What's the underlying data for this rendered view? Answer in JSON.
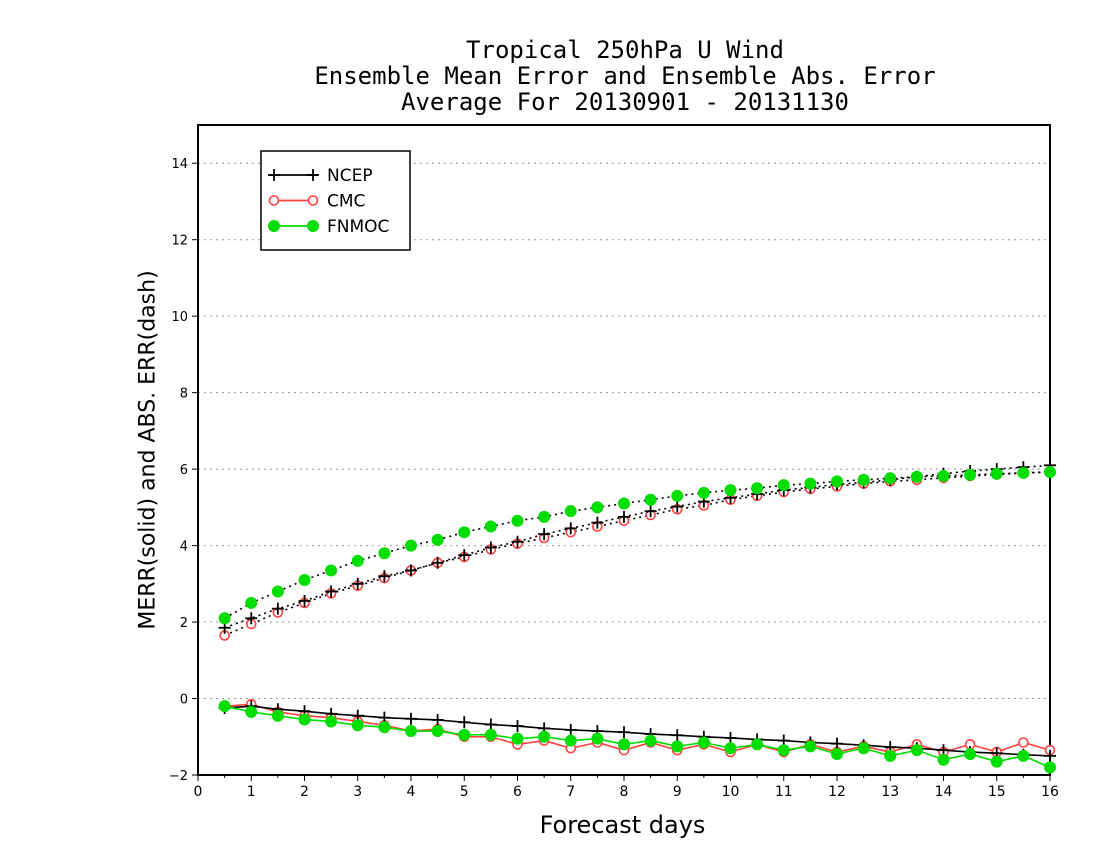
{
  "chart_data": {
    "type": "line",
    "title": [
      "Tropical 250hPa U Wind",
      "Ensemble Mean Error and Ensemble Abs. Error",
      "Average For 20130901 - 20131130"
    ],
    "xlabel": "Forecast days",
    "ylabel": "MERR(solid) and ABS. ERR(dash)",
    "xlim": [
      0,
      16
    ],
    "ylim": [
      -2,
      15
    ],
    "xticks": [
      0,
      1,
      2,
      3,
      4,
      5,
      6,
      7,
      8,
      9,
      10,
      11,
      12,
      13,
      14,
      15,
      16
    ],
    "yticks": [
      -2,
      0,
      2,
      4,
      6,
      8,
      10,
      12,
      14
    ],
    "grid": true,
    "legend_position": "top-left",
    "x": [
      0.5,
      1,
      1.5,
      2,
      2.5,
      3,
      3.5,
      4,
      4.5,
      5,
      5.5,
      6,
      6.5,
      7,
      7.5,
      8,
      8.5,
      9,
      9.5,
      10,
      10.5,
      11,
      11.5,
      12,
      12.5,
      13,
      13.5,
      14,
      14.5,
      15,
      15.5,
      16
    ],
    "series": [
      {
        "name": "NCEP",
        "marker": "plus",
        "color": "#000000",
        "kind": "mean_error",
        "values": [
          -0.25,
          -0.2,
          -0.28,
          -0.33,
          -0.4,
          -0.45,
          -0.5,
          -0.53,
          -0.56,
          -0.62,
          -0.68,
          -0.72,
          -0.78,
          -0.82,
          -0.85,
          -0.88,
          -0.93,
          -0.96,
          -1.0,
          -1.03,
          -1.07,
          -1.1,
          -1.15,
          -1.18,
          -1.22,
          -1.27,
          -1.3,
          -1.35,
          -1.4,
          -1.43,
          -1.47,
          -1.5
        ]
      },
      {
        "name": "NCEP",
        "marker": "plus",
        "color": "#000000",
        "kind": "abs_error",
        "values": [
          1.85,
          2.1,
          2.35,
          2.55,
          2.8,
          3.0,
          3.2,
          3.35,
          3.55,
          3.75,
          3.95,
          4.1,
          4.3,
          4.45,
          4.6,
          4.75,
          4.9,
          5.02,
          5.15,
          5.25,
          5.35,
          5.45,
          5.52,
          5.6,
          5.65,
          5.72,
          5.8,
          5.88,
          5.95,
          6.0,
          6.05,
          6.1
        ]
      },
      {
        "name": "CMC",
        "marker": "circle-open",
        "color": "#ff4040",
        "kind": "mean_error",
        "values": [
          -0.2,
          -0.15,
          -0.35,
          -0.45,
          -0.5,
          -0.6,
          -0.7,
          -0.85,
          -0.8,
          -1.0,
          -1.0,
          -1.2,
          -1.1,
          -1.3,
          -1.15,
          -1.35,
          -1.15,
          -1.35,
          -1.2,
          -1.4,
          -1.2,
          -1.4,
          -1.2,
          -1.4,
          -1.25,
          -1.4,
          -1.2,
          -1.4,
          -1.2,
          -1.4,
          -1.15,
          -1.35
        ]
      },
      {
        "name": "CMC",
        "marker": "circle-open",
        "color": "#ff4040",
        "kind": "abs_error",
        "values": [
          1.65,
          1.95,
          2.25,
          2.5,
          2.75,
          2.95,
          3.15,
          3.35,
          3.55,
          3.7,
          3.9,
          4.05,
          4.2,
          4.35,
          4.5,
          4.65,
          4.8,
          4.95,
          5.05,
          5.2,
          5.3,
          5.4,
          5.48,
          5.55,
          5.62,
          5.68,
          5.72,
          5.77,
          5.82,
          5.86,
          5.9,
          5.93
        ]
      },
      {
        "name": "FNMOC",
        "marker": "circle-filled",
        "color": "#00dd00",
        "kind": "mean_error",
        "values": [
          -0.2,
          -0.35,
          -0.45,
          -0.55,
          -0.6,
          -0.7,
          -0.75,
          -0.85,
          -0.85,
          -0.95,
          -0.95,
          -1.05,
          -1.0,
          -1.1,
          -1.05,
          -1.2,
          -1.1,
          -1.25,
          -1.15,
          -1.3,
          -1.2,
          -1.35,
          -1.25,
          -1.45,
          -1.3,
          -1.5,
          -1.35,
          -1.6,
          -1.45,
          -1.65,
          -1.5,
          -1.8
        ]
      },
      {
        "name": "FNMOC",
        "marker": "circle-filled",
        "color": "#00dd00",
        "kind": "abs_error",
        "values": [
          2.1,
          2.5,
          2.8,
          3.1,
          3.35,
          3.6,
          3.8,
          4.0,
          4.15,
          4.35,
          4.5,
          4.65,
          4.75,
          4.9,
          5.0,
          5.1,
          5.2,
          5.3,
          5.38,
          5.45,
          5.5,
          5.58,
          5.62,
          5.68,
          5.72,
          5.76,
          5.8,
          5.82,
          5.85,
          5.88,
          5.9,
          5.92
        ]
      }
    ],
    "legend": [
      {
        "name": "NCEP",
        "marker": "plus",
        "color": "#000000"
      },
      {
        "name": "CMC",
        "marker": "circle-open",
        "color": "#ff4040"
      },
      {
        "name": "FNMOC",
        "marker": "circle-filled",
        "color": "#00dd00"
      }
    ]
  }
}
